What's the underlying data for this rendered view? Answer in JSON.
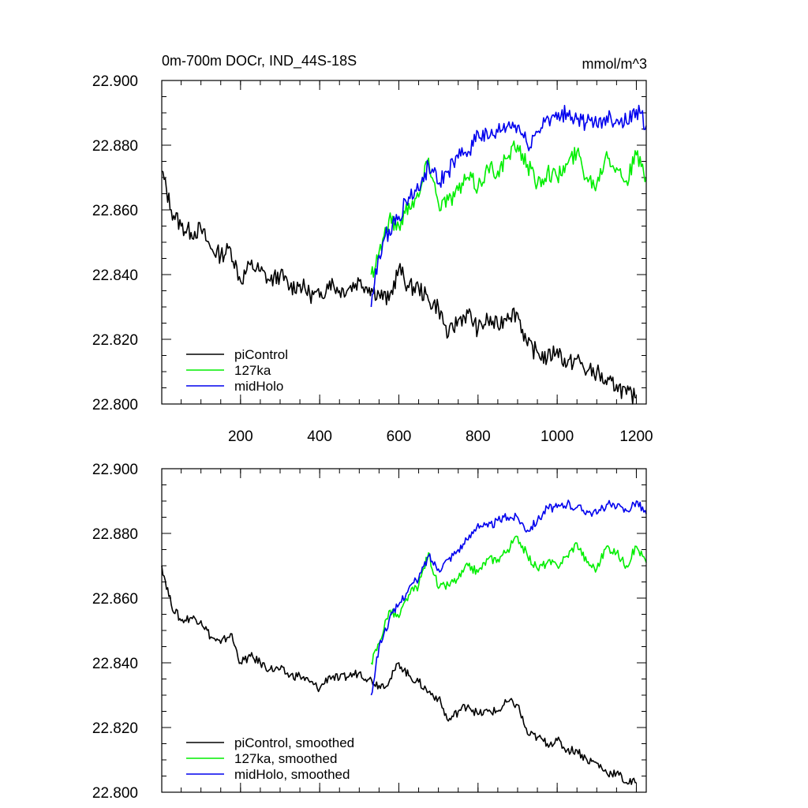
{
  "chart_data": [
    {
      "type": "line",
      "title": "0m-700m DOCr, IND_44S-18S",
      "units_label": "mmol/m^3",
      "xlim": [
        1,
        1225
      ],
      "ylim": [
        22.8,
        22.9
      ],
      "x_ticks": [
        200,
        400,
        600,
        800,
        1000,
        1200
      ],
      "x_tick_labels": [
        "200",
        "400",
        "600",
        "800",
        "1000",
        "1200"
      ],
      "y_ticks": [
        22.8,
        22.82,
        22.84,
        22.86,
        22.88,
        22.9
      ],
      "y_tick_labels": [
        "22.800",
        "22.820",
        "22.840",
        "22.860",
        "22.880",
        "22.900"
      ],
      "legend_position": "bottom-left",
      "series": [
        {
          "name": "piControl",
          "color": "#000000",
          "x": [
            1,
            25,
            50,
            75,
            100,
            125,
            150,
            175,
            200,
            225,
            250,
            275,
            300,
            325,
            350,
            375,
            400,
            425,
            450,
            475,
            500,
            525,
            550,
            575,
            600,
            625,
            650,
            675,
            700,
            725,
            750,
            775,
            800,
            825,
            850,
            875,
            900,
            925,
            950,
            975,
            1000,
            1025,
            1050,
            1075,
            1100,
            1125,
            1150,
            1175,
            1200
          ],
          "values": [
            22.872,
            22.86,
            22.855,
            22.853,
            22.854,
            22.848,
            22.846,
            22.848,
            22.838,
            22.843,
            22.841,
            22.838,
            22.84,
            22.836,
            22.837,
            22.834,
            22.833,
            22.838,
            22.835,
            22.836,
            22.838,
            22.836,
            22.834,
            22.832,
            22.842,
            22.836,
            22.836,
            22.832,
            22.83,
            22.821,
            22.826,
            22.828,
            22.823,
            22.826,
            22.824,
            22.828,
            22.828,
            22.818,
            22.816,
            22.814,
            22.817,
            22.812,
            22.814,
            22.81,
            22.81,
            22.806,
            22.806,
            22.803,
            22.802
          ]
        },
        {
          "name": "127ka",
          "color": "#00ee00",
          "x": [
            530,
            550,
            575,
            600,
            625,
            650,
            675,
            700,
            725,
            750,
            775,
            800,
            825,
            850,
            875,
            900,
            925,
            950,
            975,
            1000,
            1025,
            1050,
            1075,
            1100,
            1125,
            1150,
            1175,
            1200,
            1225
          ],
          "values": [
            22.84,
            22.847,
            22.857,
            22.855,
            22.862,
            22.864,
            22.876,
            22.862,
            22.863,
            22.866,
            22.87,
            22.867,
            22.873,
            22.872,
            22.876,
            22.88,
            22.874,
            22.868,
            22.872,
            22.87,
            22.874,
            22.878,
            22.87,
            22.868,
            22.878,
            22.873,
            22.869,
            22.877,
            22.87
          ]
        },
        {
          "name": "midHolo",
          "color": "#0000ee",
          "x": [
            530,
            550,
            575,
            600,
            625,
            650,
            675,
            700,
            725,
            750,
            775,
            800,
            825,
            850,
            875,
            900,
            925,
            950,
            975,
            1000,
            1025,
            1050,
            1075,
            1100,
            1125,
            1150,
            1175,
            1200,
            1225
          ],
          "values": [
            22.83,
            22.846,
            22.854,
            22.858,
            22.864,
            22.866,
            22.874,
            22.868,
            22.872,
            22.876,
            22.878,
            22.884,
            22.882,
            22.884,
            22.886,
            22.886,
            22.88,
            22.884,
            22.889,
            22.888,
            22.89,
            22.888,
            22.887,
            22.886,
            22.889,
            22.888,
            22.887,
            22.891,
            22.886
          ]
        }
      ],
      "legend": [
        "piControl",
        "127ka",
        "midHolo"
      ]
    },
    {
      "type": "line",
      "xlim": [
        1,
        1225
      ],
      "ylim": [
        22.8,
        22.9
      ],
      "x_ticks": [
        200,
        400,
        600,
        800,
        1000,
        1200
      ],
      "y_ticks": [
        22.8,
        22.82,
        22.84,
        22.86,
        22.88,
        22.9
      ],
      "y_tick_labels": [
        "22.800",
        "22.820",
        "22.840",
        "22.860",
        "22.880",
        "22.900"
      ],
      "legend_position": "bottom-left",
      "series": [
        {
          "name": "piControl, smoothed",
          "color": "#000000",
          "x": [
            1,
            25,
            50,
            75,
            100,
            125,
            150,
            175,
            200,
            225,
            250,
            275,
            300,
            325,
            350,
            375,
            400,
            425,
            450,
            475,
            500,
            525,
            550,
            575,
            600,
            625,
            650,
            675,
            700,
            725,
            750,
            775,
            800,
            825,
            850,
            875,
            900,
            925,
            950,
            975,
            1000,
            1025,
            1050,
            1075,
            1100,
            1125,
            1150,
            1175,
            1200
          ],
          "values": [
            22.87,
            22.858,
            22.853,
            22.854,
            22.853,
            22.848,
            22.846,
            22.849,
            22.84,
            22.842,
            22.84,
            22.838,
            22.838,
            22.836,
            22.836,
            22.834,
            22.832,
            22.836,
            22.835,
            22.836,
            22.837,
            22.835,
            22.833,
            22.834,
            22.84,
            22.836,
            22.834,
            22.831,
            22.829,
            22.822,
            22.825,
            22.827,
            22.824,
            22.825,
            22.825,
            22.828,
            22.827,
            22.818,
            22.817,
            22.815,
            22.816,
            22.813,
            22.813,
            22.81,
            22.809,
            22.806,
            22.806,
            22.803,
            22.803
          ]
        },
        {
          "name": "127ka, smoothed",
          "color": "#00ee00",
          "x": [
            530,
            550,
            575,
            600,
            625,
            650,
            675,
            700,
            725,
            750,
            775,
            800,
            825,
            850,
            875,
            900,
            925,
            950,
            975,
            1000,
            1025,
            1050,
            1075,
            1100,
            1125,
            1150,
            1175,
            1200,
            1225
          ],
          "values": [
            22.84,
            22.846,
            22.856,
            22.854,
            22.861,
            22.864,
            22.874,
            22.863,
            22.864,
            22.866,
            22.87,
            22.868,
            22.872,
            22.872,
            22.875,
            22.879,
            22.873,
            22.869,
            22.871,
            22.87,
            22.873,
            22.877,
            22.871,
            22.869,
            22.876,
            22.874,
            22.87,
            22.876,
            22.871
          ]
        },
        {
          "name": "midHolo, smoothed",
          "color": "#0000ee",
          "x": [
            530,
            550,
            575,
            600,
            625,
            650,
            675,
            700,
            725,
            750,
            775,
            800,
            825,
            850,
            875,
            900,
            925,
            950,
            975,
            1000,
            1025,
            1050,
            1075,
            1100,
            1125,
            1150,
            1175,
            1200,
            1225
          ],
          "values": [
            22.83,
            22.845,
            22.853,
            22.858,
            22.863,
            22.866,
            22.873,
            22.869,
            22.872,
            22.875,
            22.878,
            22.883,
            22.882,
            22.884,
            22.885,
            22.885,
            22.881,
            22.884,
            22.888,
            22.888,
            22.889,
            22.888,
            22.887,
            22.886,
            22.889,
            22.888,
            22.887,
            22.89,
            22.886
          ]
        }
      ],
      "legend": [
        "piControl, smoothed",
        "127ka, smoothed",
        "midHolo, smoothed"
      ]
    }
  ]
}
